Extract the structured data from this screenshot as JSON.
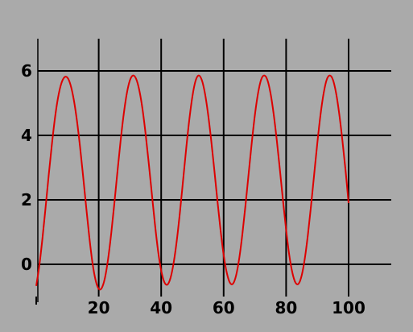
{
  "page": {
    "background": "#aaaaaa"
  },
  "chart_data": {
    "type": "line",
    "title": "",
    "xlabel": "",
    "ylabel": "",
    "xlim": [
      0,
      110
    ],
    "ylim": [
      -1,
      7
    ],
    "grid": true,
    "x_ticks": [
      20,
      40,
      60,
      80,
      100
    ],
    "x_tick_labels": [
      "20",
      "40",
      "60",
      "80",
      "100"
    ],
    "y_ticks": [
      0,
      2,
      4,
      6
    ],
    "y_tick_labels": [
      "0",
      "2",
      "4",
      "6"
    ],
    "colors": {
      "grid": "#000000",
      "series": "#dd0000"
    },
    "series": [
      {
        "x": [
          0,
          1,
          2,
          3,
          4,
          5,
          6,
          7,
          8,
          9,
          10,
          11,
          12,
          13,
          14,
          15,
          16,
          17,
          18,
          19,
          20,
          21,
          22,
          23,
          24,
          25,
          26,
          27,
          28,
          29,
          30,
          31,
          32,
          33,
          34,
          35,
          36,
          37,
          38,
          39,
          40,
          41,
          42,
          43,
          44,
          45,
          46,
          47,
          48,
          49,
          50,
          51,
          52,
          53,
          54,
          55,
          56,
          57,
          58,
          59,
          60,
          61,
          62,
          63,
          64,
          65,
          66,
          67,
          68,
          69,
          70,
          71,
          72,
          73,
          74,
          75,
          76,
          77,
          78,
          79,
          80,
          81,
          82,
          83,
          84,
          85,
          86,
          87,
          88,
          89,
          90,
          91,
          92,
          93,
          94,
          95,
          96,
          97,
          98,
          99,
          100
        ],
        "y": [
          -0.67,
          -0.03,
          0.81,
          1.77,
          2.77,
          3.71,
          4.54,
          5.18,
          5.6,
          5.8,
          5.79,
          5.56,
          5.12,
          4.48,
          3.67,
          2.74,
          1.77,
          0.84,
          0.05,
          -0.49,
          -0.76,
          -0.73,
          -0.42,
          0.16,
          0.95,
          1.88,
          2.87,
          3.82,
          4.65,
          5.3,
          5.71,
          5.86,
          5.75,
          5.4,
          4.83,
          4.06,
          3.16,
          2.2,
          1.25,
          0.42,
          -0.19,
          -0.55,
          -0.63,
          -0.42,
          0.05,
          0.74,
          1.61,
          2.59,
          3.58,
          4.48,
          5.21,
          5.69,
          5.86,
          5.72,
          5.31,
          4.67,
          3.86,
          2.94,
          1.98,
          1.07,
          0.29,
          -0.26,
          -0.57,
          -0.6,
          -0.34,
          0.19,
          0.94,
          1.84,
          2.81,
          3.77,
          4.63,
          5.3,
          5.73,
          5.86,
          5.72,
          5.31,
          4.67,
          3.86,
          2.94,
          1.98,
          1.07,
          0.29,
          -0.26,
          -0.57,
          -0.6,
          -0.34,
          0.19,
          0.94,
          1.84,
          2.81,
          3.77,
          4.63,
          5.3,
          5.73,
          5.86,
          5.72,
          5.31,
          4.67,
          3.86,
          2.94,
          1.9
        ]
      }
    ]
  }
}
